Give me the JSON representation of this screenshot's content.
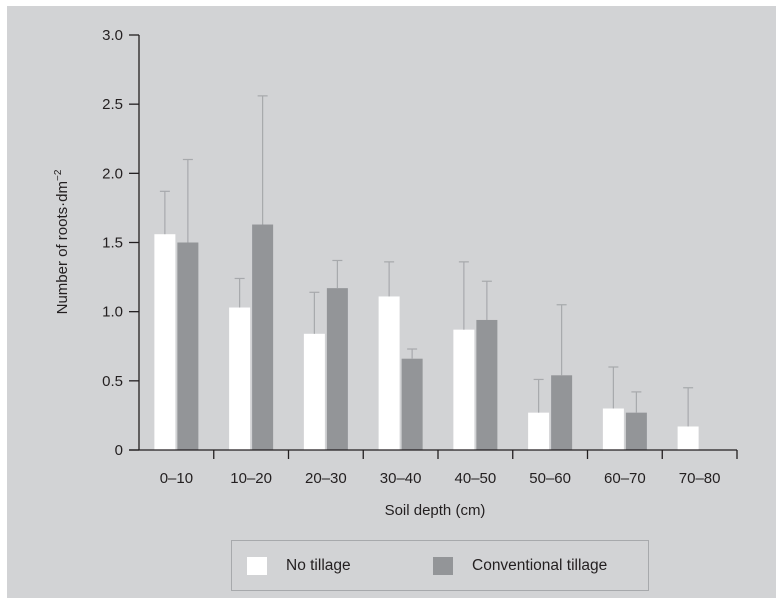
{
  "chart_data": {
    "type": "bar",
    "xlabel": "Soil depth (cm)",
    "ylabel": "Number of roots·dm",
    "ylabel_sup": "−2",
    "ylim": [
      0,
      3.0
    ],
    "yticks": [
      "0",
      "0.5",
      "1.0",
      "1.5",
      "2.0",
      "2.5",
      "3.0"
    ],
    "ytick_values": [
      0,
      0.5,
      1.0,
      1.5,
      2.0,
      2.5,
      3.0
    ],
    "categories": [
      "0–10",
      "10–20",
      "20–30",
      "30–40",
      "40–50",
      "50–60",
      "60–70",
      "70–80"
    ],
    "series": [
      {
        "name": "No tillage",
        "color": "#ffffff",
        "values": [
          1.56,
          1.03,
          0.84,
          1.11,
          0.87,
          0.27,
          0.3,
          0.17
        ],
        "error_upper": [
          1.87,
          1.24,
          1.14,
          1.36,
          1.36,
          0.51,
          0.6,
          0.45
        ]
      },
      {
        "name": "Conventional tillage",
        "color": "#939598",
        "values": [
          1.5,
          1.63,
          1.17,
          0.66,
          0.94,
          0.54,
          0.27,
          null
        ],
        "error_upper": [
          2.1,
          2.56,
          1.37,
          0.73,
          1.22,
          1.05,
          0.42,
          null
        ]
      }
    ],
    "legend_position": "bottom",
    "grid": false
  },
  "legend": {
    "no_tillage": "No tillage",
    "conventional_tillage": "Conventional tillage"
  }
}
